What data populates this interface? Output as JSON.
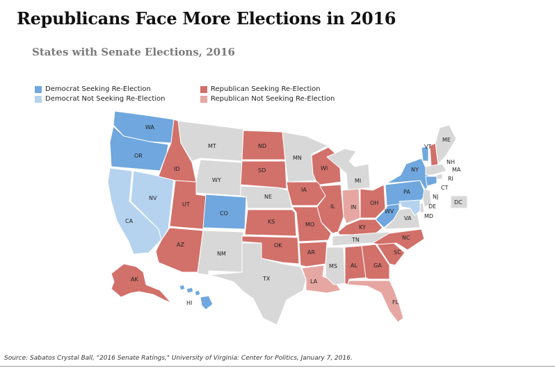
{
  "title": "Republicans Face More Elections in 2016",
  "subtitle": "States with Senate Elections, 2016",
  "colors": {
    "dem_seeking": "#6fa7de",
    "dem_not": "#b5d3ef",
    "rep_seeking": "#d2706a",
    "rep_not": "#e6a7a2",
    "none": "#d8d8d8",
    "border": "#ffffff"
  },
  "legend": {
    "dem_seeking": "Democrat Seeking Re-Election",
    "dem_not": "Democrat Not Seeking Re-Election",
    "rep_seeking": "Republican Seeking Re-Election",
    "rep_not": "Republican Not Seeking Re-Election"
  },
  "states": {
    "WA": {
      "label": "WA",
      "cat": "dem_seeking"
    },
    "OR": {
      "label": "OR",
      "cat": "dem_seeking"
    },
    "CA": {
      "label": "CA",
      "cat": "dem_not"
    },
    "NV": {
      "label": "NV",
      "cat": "dem_not"
    },
    "ID": {
      "label": "ID",
      "cat": "rep_seeking"
    },
    "MT": {
      "label": "MT",
      "cat": "none"
    },
    "WY": {
      "label": "WY",
      "cat": "none"
    },
    "UT": {
      "label": "UT",
      "cat": "rep_seeking"
    },
    "AZ": {
      "label": "AZ",
      "cat": "rep_seeking"
    },
    "CO": {
      "label": "CO",
      "cat": "dem_seeking"
    },
    "NM": {
      "label": "NM",
      "cat": "none"
    },
    "ND": {
      "label": "ND",
      "cat": "rep_seeking"
    },
    "SD": {
      "label": "SD",
      "cat": "rep_seeking"
    },
    "NE": {
      "label": "NE",
      "cat": "none"
    },
    "KS": {
      "label": "KS",
      "cat": "rep_seeking"
    },
    "OK": {
      "label": "OK",
      "cat": "rep_seeking"
    },
    "TX": {
      "label": "TX",
      "cat": "none"
    },
    "MN": {
      "label": "MN",
      "cat": "none"
    },
    "IA": {
      "label": "IA",
      "cat": "rep_seeking"
    },
    "MO": {
      "label": "MO",
      "cat": "rep_seeking"
    },
    "AR": {
      "label": "AR",
      "cat": "rep_seeking"
    },
    "LA": {
      "label": "LA",
      "cat": "rep_not"
    },
    "WI": {
      "label": "WI",
      "cat": "rep_seeking"
    },
    "IL": {
      "label": "IL",
      "cat": "rep_seeking"
    },
    "MI": {
      "label": "MI",
      "cat": "none"
    },
    "IN": {
      "label": "IN",
      "cat": "rep_not"
    },
    "OH": {
      "label": "OH",
      "cat": "rep_seeking"
    },
    "KY": {
      "label": "KY",
      "cat": "rep_seeking"
    },
    "TN": {
      "label": "TN",
      "cat": "none"
    },
    "MS": {
      "label": "MS",
      "cat": "none"
    },
    "AL": {
      "label": "AL",
      "cat": "rep_seeking"
    },
    "GA": {
      "label": "GA",
      "cat": "rep_seeking"
    },
    "FL": {
      "label": "FL",
      "cat": "rep_not"
    },
    "SC": {
      "label": "SC",
      "cat": "rep_seeking"
    },
    "NC": {
      "label": "NC",
      "cat": "rep_seeking"
    },
    "VA": {
      "label": "VA",
      "cat": "none"
    },
    "WV": {
      "label": "WV",
      "cat": "dem_seeking"
    },
    "PA": {
      "label": "PA",
      "cat": "dem_seeking"
    },
    "NY": {
      "label": "NY",
      "cat": "dem_seeking"
    },
    "VT": {
      "label": "VT",
      "cat": "dem_seeking"
    },
    "NH": {
      "label": "NH",
      "cat": "rep_seeking"
    },
    "ME": {
      "label": "ME",
      "cat": "none"
    },
    "MA": {
      "label": "MA",
      "cat": "none"
    },
    "RI": {
      "label": "RI",
      "cat": "none"
    },
    "CT": {
      "label": "CT",
      "cat": "dem_seeking"
    },
    "NJ": {
      "label": "NJ",
      "cat": "none"
    },
    "DE": {
      "label": "DE",
      "cat": "none"
    },
    "MD": {
      "label": "MD",
      "cat": "dem_not"
    },
    "DC": {
      "label": "DC",
      "cat": "none"
    },
    "AK": {
      "label": "AK",
      "cat": "rep_seeking"
    },
    "HI": {
      "label": "HI",
      "cat": "dem_seeking"
    }
  },
  "source": "Source: Sabatos Crystal Ball, \"2016 Senate Ratings,\" University of Virginia: Center for Politics, January 7, 2016."
}
